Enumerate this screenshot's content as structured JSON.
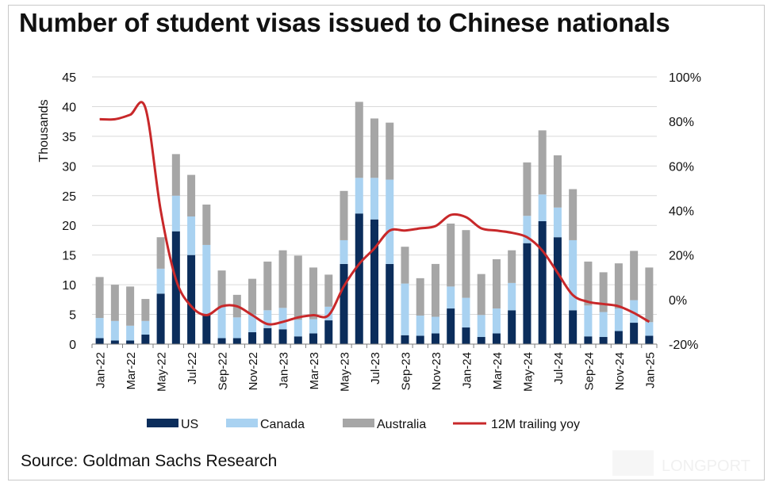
{
  "title": "Number of student visas issued to Chinese nationals",
  "source": "Source:  Goldman Sachs Research",
  "watermark": "LONGPORT",
  "chart_data": {
    "type": "bar",
    "stacked": true,
    "title": "Number of student visas issued to Chinese nationals",
    "ylabel": "Thousands",
    "y2label": "",
    "ylim": [
      0,
      45
    ],
    "yticks": [
      "0",
      "5",
      "10",
      "15",
      "20",
      "25",
      "30",
      "35",
      "40",
      "45"
    ],
    "y2lim": [
      -20,
      100
    ],
    "y2ticks": [
      "-20%",
      "0%",
      "20%",
      "40%",
      "60%",
      "80%",
      "100%"
    ],
    "grid": true,
    "legend_position": "bottom",
    "categories": [
      "Jan-22",
      "Feb-22",
      "Mar-22",
      "Apr-22",
      "May-22",
      "Jun-22",
      "Jul-22",
      "Aug-22",
      "Sep-22",
      "Oct-22",
      "Nov-22",
      "Dec-22",
      "Jan-23",
      "Feb-23",
      "Mar-23",
      "Apr-23",
      "May-23",
      "Jun-23",
      "Jul-23",
      "Aug-23",
      "Sep-23",
      "Oct-23",
      "Nov-23",
      "Dec-23",
      "Jan-24",
      "Feb-24",
      "Mar-24",
      "Apr-24",
      "May-24",
      "Jun-24",
      "Jul-24",
      "Aug-24",
      "Sep-24",
      "Oct-24",
      "Nov-24",
      "Dec-24",
      "Jan-25"
    ],
    "xtick_labels": [
      "Jan-22",
      "Mar-22",
      "May-22",
      "Jul-22",
      "Sep-22",
      "Nov-22",
      "Jan-23",
      "Mar-23",
      "May-23",
      "Jul-23",
      "Sep-23",
      "Nov-23",
      "Jan-24",
      "Mar-24",
      "May-24",
      "Jul-24",
      "Sep-24",
      "Nov-24",
      "Jan-25"
    ],
    "series": [
      {
        "name": "US",
        "color": "#0b2d5b",
        "axis": "left",
        "kind": "bar",
        "values": [
          1.0,
          0.6,
          0.6,
          1.6,
          8.5,
          19.0,
          15.0,
          5.0,
          1.0,
          1.0,
          2.0,
          2.7,
          2.5,
          1.3,
          1.8,
          4.0,
          13.5,
          22.0,
          21.0,
          13.5,
          1.5,
          1.4,
          1.8,
          6.0,
          2.8,
          1.2,
          1.8,
          5.7,
          17.0,
          20.7,
          18.0,
          5.7,
          1.3,
          1.2,
          2.2,
          3.6,
          1.4
        ]
      },
      {
        "name": "Canada",
        "color": "#a9d2f1",
        "axis": "left",
        "kind": "bar",
        "values": [
          3.4,
          3.3,
          2.5,
          2.3,
          4.2,
          6.0,
          6.5,
          11.7,
          5.2,
          3.5,
          3.0,
          3.0,
          3.6,
          2.8,
          2.4,
          2.3,
          4.0,
          6.0,
          7.0,
          14.2,
          8.7,
          3.4,
          2.8,
          3.7,
          5.0,
          3.7,
          4.2,
          4.6,
          4.6,
          4.5,
          5.0,
          11.8,
          5.2,
          4.2,
          3.8,
          3.8,
          2.3
        ]
      },
      {
        "name": "Australia",
        "color": "#a6a6a6",
        "axis": "left",
        "kind": "bar",
        "values": [
          6.9,
          6.1,
          6.6,
          3.7,
          5.3,
          7.0,
          7.0,
          6.8,
          6.2,
          3.8,
          6.0,
          8.2,
          9.7,
          10.8,
          8.7,
          5.4,
          8.3,
          12.8,
          10.0,
          9.6,
          6.2,
          6.3,
          8.9,
          10.6,
          11.4,
          6.9,
          8.3,
          5.5,
          9.0,
          10.8,
          8.8,
          8.6,
          7.4,
          6.7,
          7.6,
          8.3,
          9.2
        ]
      },
      {
        "name": "12M trailing yoy",
        "color": "#c8282a",
        "axis": "right",
        "kind": "line",
        "values": [
          81,
          81,
          83,
          86,
          40,
          9,
          -3,
          -7,
          -3,
          -3,
          -7,
          -11,
          -10,
          -8,
          -7,
          -7,
          6,
          16,
          23,
          31,
          31,
          32,
          33,
          38,
          37,
          32,
          31,
          30,
          28,
          22,
          12,
          2,
          -1,
          -2,
          -3,
          -6,
          -10
        ]
      }
    ]
  }
}
